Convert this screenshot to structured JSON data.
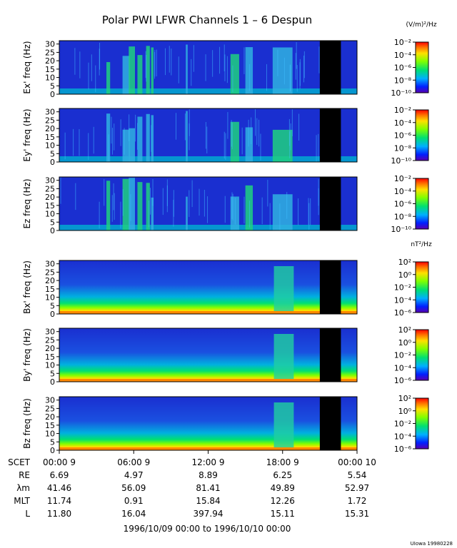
{
  "title": "Polar PWI LFWR Channels 1 – 6 Despun",
  "units_electric": "(V/m)²/Hz",
  "units_magnetic": "nT²/Hz",
  "credit": "UIowa 19980228",
  "date_range": "1996/10/09 00:00 to 1996/10/10 00:00",
  "colors": {
    "background": "#ffffff",
    "data_gap": "#000000",
    "noise_floor": "#1a2fd0"
  },
  "chart_data": {
    "type": "heatmap",
    "x_ticks": [
      "00:00  9",
      "06:00  9",
      "12:00  9",
      "18:00  9",
      "00:00 10"
    ],
    "x_hours": [
      0,
      6,
      12,
      18,
      24
    ],
    "data_gap_hours": [
      [
        21.0,
        22.7
      ]
    ],
    "panels": [
      {
        "ylabel": "Ex' freq (Hz)",
        "ylim": [
          0,
          32
        ],
        "yticks": [
          "30",
          "25",
          "20",
          "15",
          "10",
          "5",
          "0"
        ],
        "colorbar": [
          "10⁻²",
          "10⁻⁴",
          "10⁻⁶",
          "10⁻⁸",
          "10⁻¹⁰"
        ],
        "kind": "E"
      },
      {
        "ylabel": "Ey' freq (Hz)",
        "ylim": [
          0,
          32
        ],
        "yticks": [
          "30",
          "25",
          "20",
          "15",
          "10",
          "5",
          "0"
        ],
        "colorbar": [
          "10⁻²",
          "10⁻⁴",
          "10⁻⁶",
          "10⁻⁸",
          "10⁻¹⁰"
        ],
        "kind": "E"
      },
      {
        "ylabel": "Ez freq (Hz)",
        "ylim": [
          0,
          32
        ],
        "yticks": [
          "30",
          "25",
          "20",
          "15",
          "10",
          "5",
          "0"
        ],
        "colorbar": [
          "10⁻²",
          "10⁻⁴",
          "10⁻⁶",
          "10⁻⁸",
          "10⁻¹⁰"
        ],
        "kind": "E"
      },
      {
        "ylabel": "Bx' freq (Hz)",
        "ylim": [
          0,
          32
        ],
        "yticks": [
          "30",
          "25",
          "20",
          "15",
          "10",
          "5",
          "0"
        ],
        "colorbar": [
          "10²",
          "10⁰",
          "10⁻²",
          "10⁻⁴",
          "10⁻⁶"
        ],
        "kind": "B"
      },
      {
        "ylabel": "By' freq (Hz)",
        "ylim": [
          0,
          32
        ],
        "yticks": [
          "30",
          "25",
          "20",
          "15",
          "10",
          "5",
          "0"
        ],
        "colorbar": [
          "10²",
          "10⁰",
          "10⁻²",
          "10⁻⁴",
          "10⁻⁶"
        ],
        "kind": "B"
      },
      {
        "ylabel": "Bz freq (Hz)",
        "ylim": [
          0,
          32
        ],
        "yticks": [
          "30",
          "25",
          "20",
          "15",
          "10",
          "5",
          "0"
        ],
        "colorbar": [
          "10²",
          "10⁰",
          "10⁻²",
          "10⁻⁴",
          "10⁻⁶"
        ],
        "kind": "B"
      }
    ],
    "ephemeris": [
      {
        "label": "SCET",
        "values": [
          "00:00  9",
          "06:00  9",
          "12:00  9",
          "18:00  9",
          "00:00 10"
        ]
      },
      {
        "label": "RE",
        "values": [
          "6.69",
          "4.97",
          "8.89",
          "6.25",
          "5.54"
        ]
      },
      {
        "label": "λm",
        "values": [
          "41.46",
          "56.09",
          "81.41",
          "49.89",
          "52.97"
        ]
      },
      {
        "label": "MLT",
        "values": [
          "11.74",
          "0.91",
          "15.84",
          "12.26",
          "1.72"
        ]
      },
      {
        "label": "L",
        "values": [
          "11.80",
          "16.04",
          "397.94",
          "15.11",
          "15.31"
        ]
      }
    ]
  }
}
